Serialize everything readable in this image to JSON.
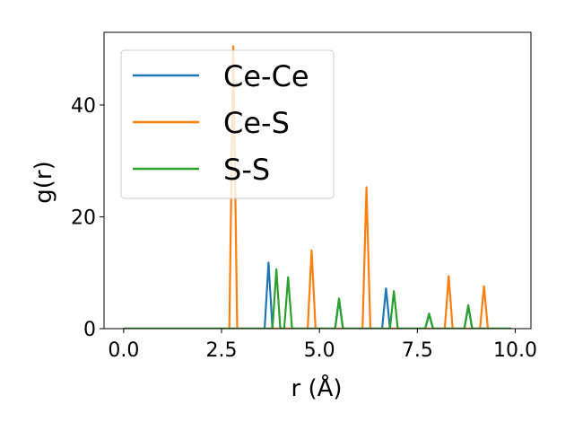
{
  "chart_data": {
    "type": "line",
    "xlabel": "r (Å)",
    "ylabel": "g(r)",
    "xlim": [
      -0.5,
      10.4
    ],
    "ylim": [
      0,
      53
    ],
    "x_ticks": [
      0.0,
      2.5,
      5.0,
      7.5,
      10.0
    ],
    "x_tick_labels": [
      "0.0",
      "2.5",
      "5.0",
      "7.5",
      "10.0"
    ],
    "y_ticks": [
      0,
      20,
      40
    ],
    "y_tick_labels": [
      "0",
      "20",
      "40"
    ],
    "grid": false,
    "legend_position": "top-left",
    "series": [
      {
        "name": "Ce-Ce",
        "color": "#1f77b4",
        "x": [
          0.0,
          3.6,
          3.7,
          3.8,
          5.4,
          5.5,
          5.6,
          6.6,
          6.7,
          6.8,
          7.7,
          7.8,
          7.9,
          8.7,
          8.8,
          8.9,
          9.9
        ],
        "y": [
          0,
          0,
          11.8,
          0,
          0,
          5.2,
          0,
          0,
          7.2,
          0,
          0,
          2.6,
          0,
          0,
          4.0,
          0,
          0
        ]
      },
      {
        "name": "Ce-S",
        "color": "#ff7f0e",
        "x": [
          0.0,
          2.7,
          2.8,
          2.9,
          4.7,
          4.8,
          4.9,
          6.1,
          6.2,
          6.3,
          8.2,
          8.3,
          8.4,
          9.1,
          9.2,
          9.3,
          9.9
        ],
        "y": [
          0,
          0,
          50.5,
          0,
          0,
          14.0,
          0,
          0,
          25.3,
          0,
          0,
          9.4,
          0,
          0,
          7.6,
          0,
          0
        ]
      },
      {
        "name": "S-S",
        "color": "#2ca02c",
        "x": [
          0.0,
          3.8,
          3.9,
          4.0,
          4.1,
          4.2,
          4.3,
          5.4,
          5.5,
          5.6,
          6.8,
          6.9,
          7.0,
          7.7,
          7.8,
          7.9,
          8.7,
          8.8,
          8.9,
          9.9
        ],
        "y": [
          0,
          0,
          10.6,
          0,
          0,
          9.2,
          0,
          0,
          5.4,
          0,
          0,
          6.7,
          0,
          0,
          2.7,
          0,
          0,
          4.2,
          0,
          0
        ]
      }
    ]
  }
}
